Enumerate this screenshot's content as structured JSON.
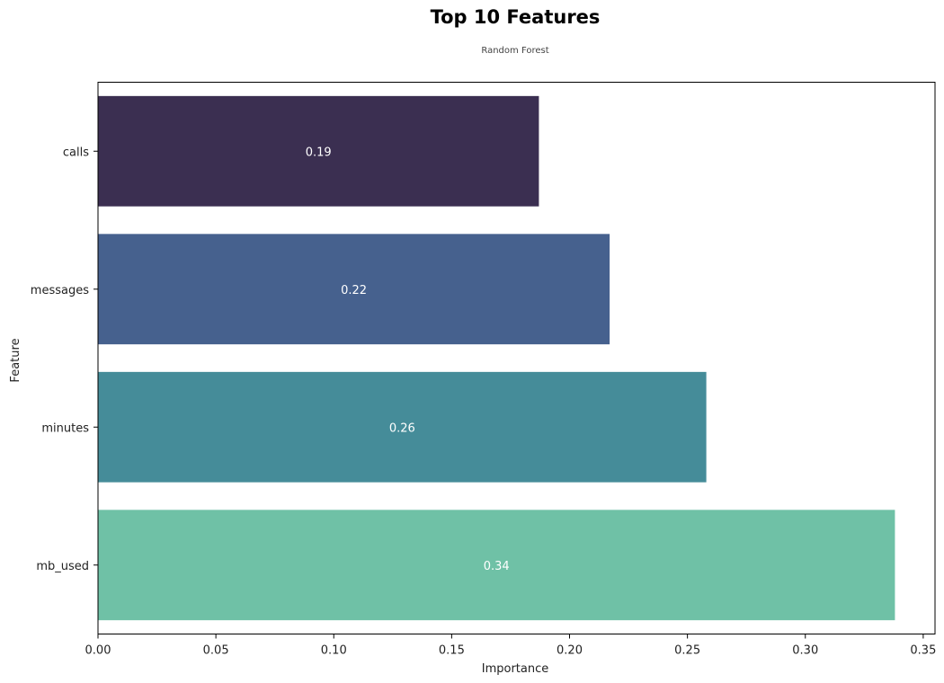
{
  "chart_data": {
    "type": "bar",
    "orientation": "horizontal",
    "title": "Top 10 Features",
    "subtitle": "Random Forest",
    "xlabel": "Importance",
    "ylabel": "Feature",
    "categories": [
      "calls",
      "messages",
      "minutes",
      "mb_used"
    ],
    "values": [
      0.187,
      0.217,
      0.258,
      0.338
    ],
    "data_labels": [
      "0.19",
      "0.22",
      "0.26",
      "0.34"
    ],
    "colors": [
      "#3b2f51",
      "#46618e",
      "#458c99",
      "#6fc1a6"
    ],
    "xlim": [
      0,
      0.355
    ],
    "xticks": [
      0.0,
      0.05,
      0.1,
      0.15,
      0.2,
      0.25,
      0.3,
      0.35
    ],
    "xtick_labels": [
      "0.00",
      "0.05",
      "0.10",
      "0.15",
      "0.20",
      "0.25",
      "0.30",
      "0.35"
    ],
    "grid": false,
    "legend": "none"
  }
}
